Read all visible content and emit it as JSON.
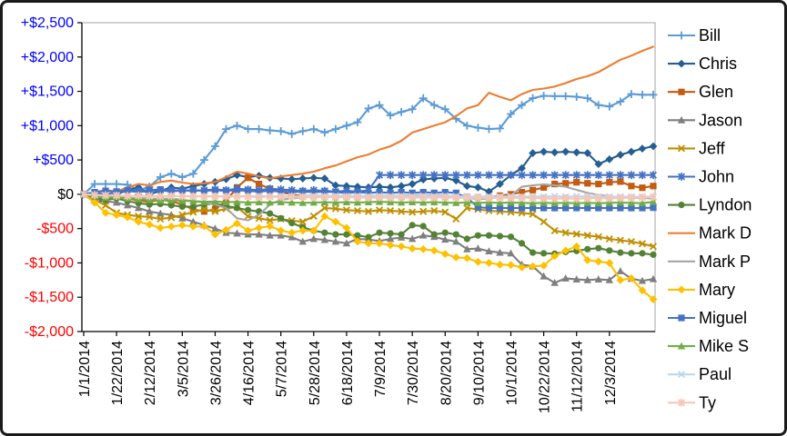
{
  "chart_data": {
    "type": "line",
    "title": "",
    "xlabel": "",
    "ylabel": "",
    "legend_position": "right",
    "grid": false,
    "ylim": [
      -2000,
      2500
    ],
    "y_axis": {
      "ticks": [
        {
          "value": 2500,
          "label": "+$2,500",
          "color": "#0000FF"
        },
        {
          "value": 2000,
          "label": "+$2,000",
          "color": "#0000FF"
        },
        {
          "value": 1500,
          "label": "+$1,500",
          "color": "#0000FF"
        },
        {
          "value": 1000,
          "label": "+$1,000",
          "color": "#0000FF"
        },
        {
          "value": 500,
          "label": "+$500",
          "color": "#0000FF"
        },
        {
          "value": 0,
          "label": "$0",
          "color": "#000000"
        },
        {
          "value": -500,
          "label": "-$500",
          "color": "#FF0000"
        },
        {
          "value": -1000,
          "label": "-$1,000",
          "color": "#FF0000"
        },
        {
          "value": -1500,
          "label": "-$1,500",
          "color": "#FF0000"
        },
        {
          "value": -2000,
          "label": "-$2,000",
          "color": "#FF0000"
        }
      ]
    },
    "x_axis": {
      "tick_labels": [
        "1/1/2014",
        "1/22/2014",
        "2/12/2014",
        "3/5/2014",
        "3/26/2014",
        "4/16/2014",
        "5/7/2014",
        "5/28/2014",
        "6/18/2014",
        "7/9/2014",
        "7/30/2014",
        "8/20/2014",
        "9/10/2014",
        "10/1/2014",
        "10/22/2014",
        "11/12/2014",
        "12/3/2014"
      ],
      "label_every_n_points": 3,
      "points_total": 53
    },
    "series": [
      {
        "name": "Bill",
        "color": "#5B9BD5",
        "marker": "plus",
        "values": [
          0,
          150,
          150,
          150,
          140,
          60,
          110,
          250,
          300,
          250,
          300,
          500,
          700,
          950,
          1000,
          950,
          950,
          930,
          920,
          880,
          920,
          950,
          900,
          950,
          1000,
          1050,
          1250,
          1300,
          1150,
          1200,
          1240,
          1400,
          1300,
          1240,
          1100,
          1000,
          970,
          950,
          960,
          1170,
          1300,
          1400,
          1435,
          1430,
          1430,
          1420,
          1400,
          1300,
          1280,
          1350,
          1460,
          1450,
          1450
        ]
      },
      {
        "name": "Chris",
        "color": "#255E91",
        "marker": "diamond",
        "values": [
          0,
          -120,
          -80,
          0,
          60,
          100,
          0,
          50,
          100,
          80,
          120,
          150,
          180,
          220,
          280,
          250,
          270,
          240,
          230,
          220,
          230,
          240,
          230,
          130,
          120,
          110,
          100,
          110,
          100,
          120,
          150,
          215,
          230,
          240,
          200,
          120,
          100,
          40,
          150,
          280,
          380,
          600,
          620,
          610,
          620,
          610,
          600,
          440,
          510,
          575,
          620,
          665,
          700
        ]
      },
      {
        "name": "Glen",
        "color": "#C55A11",
        "marker": "square",
        "values": [
          0,
          -30,
          -10,
          -30,
          -60,
          -90,
          -110,
          -80,
          -100,
          -150,
          -220,
          -250,
          -220,
          -100,
          100,
          240,
          150,
          80,
          30,
          0,
          -30,
          -20,
          -30,
          -40,
          -30,
          -40,
          -30,
          -25,
          -30,
          -35,
          -30,
          -25,
          -30,
          -35,
          -30,
          -40,
          -45,
          -40,
          -20,
          0,
          30,
          60,
          100,
          150,
          160,
          175,
          160,
          150,
          175,
          185,
          120,
          95,
          120
        ]
      },
      {
        "name": "Jason",
        "color": "#7F7F7F",
        "marker": "triangle",
        "values": [
          0,
          -50,
          -100,
          -120,
          -160,
          -200,
          -250,
          -280,
          -300,
          -350,
          -400,
          -450,
          -500,
          -560,
          -570,
          -585,
          -585,
          -600,
          -600,
          -625,
          -690,
          -650,
          -665,
          -690,
          -715,
          -650,
          -660,
          -680,
          -650,
          -630,
          -650,
          -600,
          -620,
          -660,
          -690,
          -800,
          -790,
          -830,
          -850,
          -860,
          -1025,
          -1050,
          -1195,
          -1290,
          -1225,
          -1240,
          -1250,
          -1240,
          -1250,
          -1120,
          -1230,
          -1260,
          -1235
        ]
      },
      {
        "name": "Jeff",
        "color": "#BF8F00",
        "marker": "x",
        "values": [
          0,
          -80,
          -160,
          -270,
          -300,
          -320,
          -330,
          -360,
          -340,
          -300,
          -260,
          -225,
          -250,
          -210,
          -185,
          -320,
          -350,
          -380,
          -360,
          -385,
          -400,
          -320,
          -200,
          -210,
          -230,
          -240,
          -250,
          -230,
          -240,
          -250,
          -260,
          -250,
          -240,
          -260,
          -360,
          -200,
          -220,
          -240,
          -250,
          -260,
          -270,
          -290,
          -400,
          -530,
          -560,
          -580,
          -600,
          -620,
          -650,
          -670,
          -690,
          -720,
          -760
        ]
      },
      {
        "name": "John",
        "color": "#4472C4",
        "marker": "asterisk",
        "values": [
          0,
          20,
          0,
          30,
          50,
          30,
          50,
          60,
          40,
          60,
          50,
          60,
          70,
          60,
          80,
          70,
          60,
          80,
          70,
          60,
          50,
          60,
          50,
          40,
          50,
          40,
          60,
          280,
          280,
          280,
          280,
          280,
          280,
          280,
          280,
          280,
          280,
          280,
          280,
          280,
          280,
          280,
          280,
          280,
          280,
          280,
          280,
          280,
          280,
          280,
          280,
          280,
          280
        ]
      },
      {
        "name": "Lyndon",
        "color": "#548235",
        "marker": "circle",
        "values": [
          0,
          -50,
          -80,
          -60,
          -100,
          -130,
          -150,
          -140,
          -160,
          -180,
          -180,
          -150,
          -135,
          -170,
          -200,
          -230,
          -250,
          -280,
          -350,
          -420,
          -480,
          -530,
          -560,
          -585,
          -585,
          -600,
          -625,
          -560,
          -570,
          -585,
          -450,
          -465,
          -585,
          -560,
          -585,
          -650,
          -600,
          -600,
          -610,
          -620,
          -715,
          -850,
          -860,
          -865,
          -840,
          -825,
          -800,
          -785,
          -820,
          -850,
          -860,
          -860,
          -880
        ]
      },
      {
        "name": "Mark D",
        "color": "#ED7D31",
        "marker": "none",
        "values": [
          0,
          30,
          60,
          40,
          100,
          150,
          130,
          180,
          200,
          170,
          150,
          160,
          180,
          250,
          330,
          300,
          260,
          230,
          260,
          280,
          300,
          330,
          380,
          420,
          480,
          540,
          580,
          650,
          700,
          780,
          900,
          950,
          1000,
          1050,
          1140,
          1250,
          1300,
          1480,
          1420,
          1370,
          1460,
          1520,
          1540,
          1570,
          1620,
          1680,
          1720,
          1780,
          1870,
          1960,
          2020,
          2090,
          2150
        ]
      },
      {
        "name": "Mark P",
        "color": "#A5A5A5",
        "marker": "none",
        "values": [
          0,
          -30,
          -50,
          -40,
          -60,
          -55,
          -60,
          -70,
          -60,
          -80,
          -100,
          -120,
          -150,
          -200,
          -350,
          -380,
          -300,
          -150,
          -80,
          -60,
          -40,
          -30,
          -20,
          -30,
          -20,
          -30,
          -25,
          -20,
          -25,
          -20,
          -15,
          -20,
          -15,
          -20,
          -30,
          -50,
          -70,
          -60,
          -40,
          -20,
          110,
          130,
          145,
          130,
          110,
          65,
          20,
          -10,
          -30,
          -40,
          -50,
          -55,
          -60
        ]
      },
      {
        "name": "Mary",
        "color": "#FFC000",
        "marker": "diamond",
        "values": [
          0,
          -120,
          -270,
          -300,
          -335,
          -400,
          -440,
          -490,
          -470,
          -450,
          -470,
          -465,
          -585,
          -520,
          -425,
          -530,
          -490,
          -465,
          -530,
          -560,
          -530,
          -530,
          -320,
          -400,
          -490,
          -690,
          -715,
          -715,
          -740,
          -760,
          -790,
          -800,
          -820,
          -870,
          -920,
          -930,
          -985,
          -1000,
          -1025,
          -1030,
          -1065,
          -1050,
          -1040,
          -900,
          -820,
          -760,
          -960,
          -980,
          -1000,
          -1250,
          -1225,
          -1400,
          -1530
        ]
      },
      {
        "name": "Miguel",
        "color": "#4472C4",
        "marker": "square",
        "values": [
          0,
          30,
          50,
          40,
          60,
          50,
          60,
          70,
          60,
          50,
          60,
          50,
          60,
          50,
          60,
          50,
          40,
          50,
          40,
          30,
          40,
          30,
          40,
          30,
          20,
          30,
          20,
          30,
          20,
          30,
          20,
          30,
          20,
          30,
          20,
          -50,
          -190,
          -200,
          -200,
          -200,
          -200,
          -200,
          -200,
          -200,
          -200,
          -200,
          -200,
          -200,
          -200,
          -200,
          -200,
          -200,
          -195
        ]
      },
      {
        "name": "Mike S",
        "color": "#70AD47",
        "marker": "triangle",
        "values": [
          0,
          -30,
          -50,
          -40,
          -60,
          -70,
          -80,
          -90,
          -85,
          -95,
          -100,
          -110,
          -105,
          -115,
          -110,
          -120,
          -115,
          -120,
          -115,
          -120,
          -125,
          -120,
          -115,
          -120,
          -115,
          -120,
          -115,
          -110,
          -115,
          -120,
          -115,
          -120,
          -115,
          -120,
          -125,
          -120,
          -125,
          -120,
          -125,
          -120,
          -125,
          -130,
          -125,
          -130,
          -125,
          -130,
          -125,
          -130,
          -125,
          -120,
          -125,
          -130,
          -110
        ]
      },
      {
        "name": "Paul",
        "color": "#BDD7EE",
        "marker": "x",
        "values": [
          0,
          -10,
          -20,
          -15,
          -25,
          -20,
          -25,
          -30,
          -25,
          -30,
          -25,
          -30,
          -25,
          -30,
          -25,
          -30,
          -25,
          -30,
          -25,
          -30,
          -30,
          -25,
          -30,
          -25,
          -30,
          -25,
          -30,
          -25,
          -30,
          -25,
          -30,
          -25,
          -30,
          -25,
          -30,
          -30,
          -35,
          -30,
          -35,
          -30,
          -35,
          -30,
          -35,
          -30,
          -35,
          -30,
          -35,
          -35,
          -35,
          -35,
          -35,
          -35,
          -35
        ]
      },
      {
        "name": "Ty",
        "color": "#F6C6B5",
        "marker": "asterisk",
        "values": [
          0,
          -10,
          -15,
          -20,
          -25,
          -20,
          -25,
          -30,
          -25,
          -30,
          -30,
          -35,
          -30,
          -35,
          -30,
          -35,
          -40,
          -35,
          -40,
          -35,
          -40,
          -45,
          -40,
          -45,
          -40,
          -45,
          -50,
          -45,
          -50,
          -45,
          -50,
          -45,
          -50,
          -45,
          -50,
          -55,
          -50,
          -55,
          -50,
          -55,
          -50,
          -55,
          -60,
          -65,
          -60,
          -65,
          -60,
          -55,
          -60,
          -55,
          -50,
          -45,
          -40
        ]
      }
    ]
  }
}
